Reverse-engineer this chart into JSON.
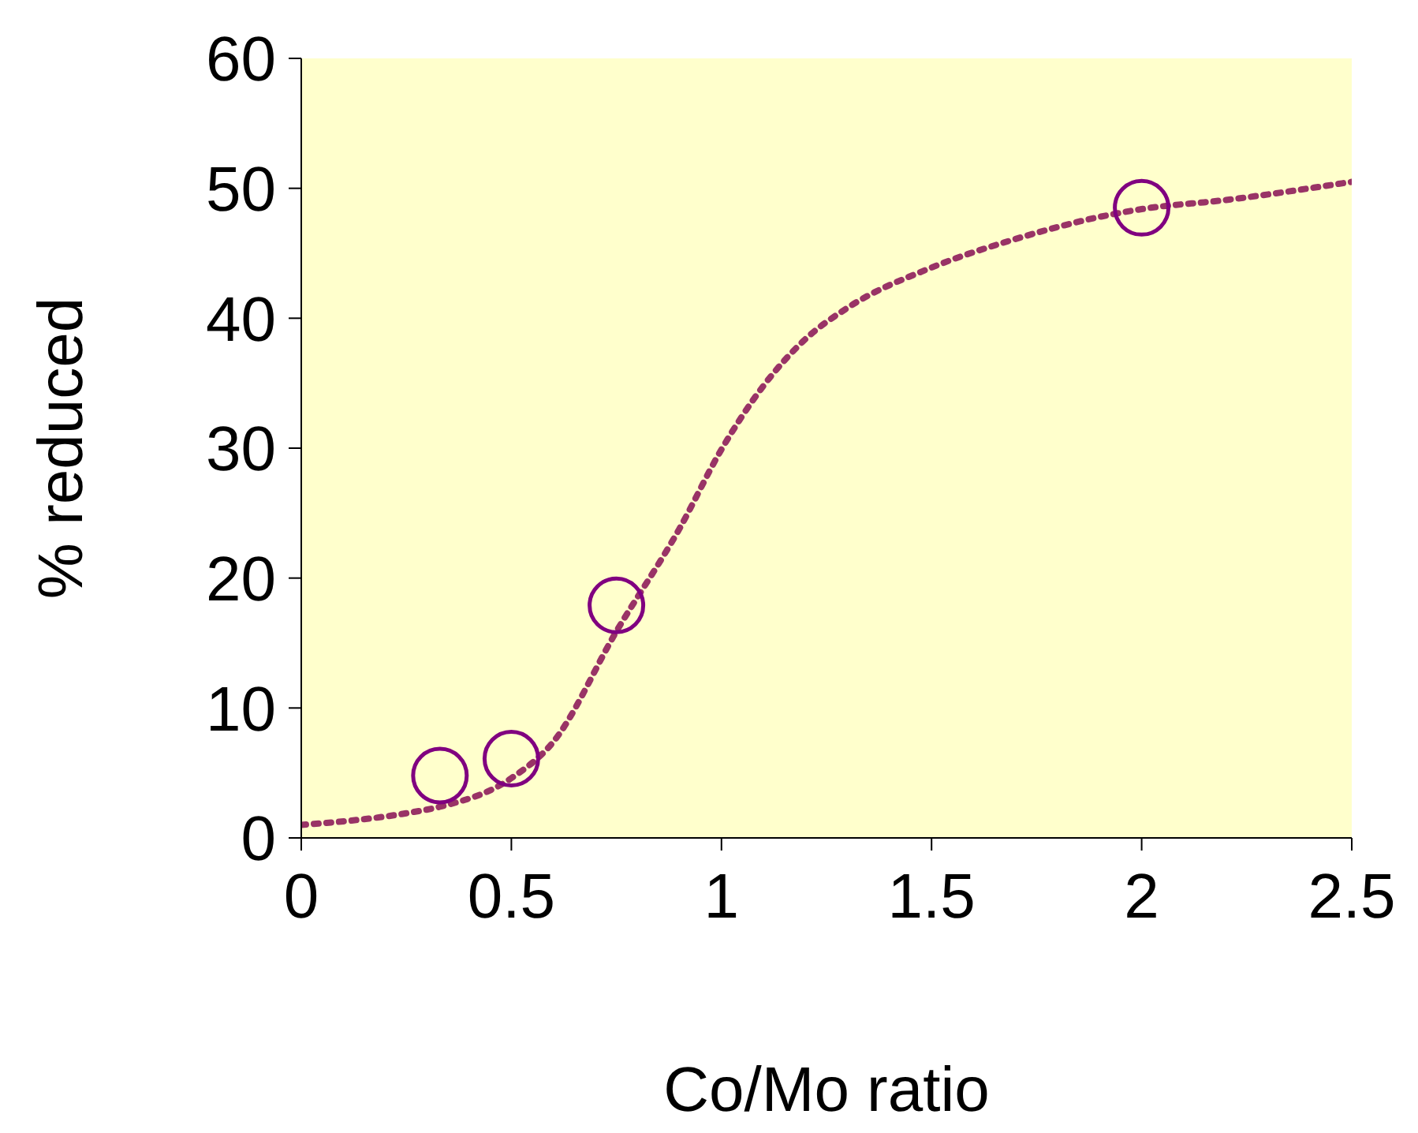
{
  "chart_data": {
    "type": "scatter",
    "xlabel": "Co/Mo ratio",
    "ylabel": "% reduced",
    "xlim": [
      0,
      2.5
    ],
    "xticks": [
      0,
      0.5,
      1,
      1.5,
      2,
      2.5
    ],
    "ylim": [
      0,
      60
    ],
    "yticks": [
      0,
      10,
      20,
      30,
      40,
      50,
      60
    ],
    "marker": "circle",
    "series": [
      {
        "color": "#800080",
        "x": [
          0.33,
          0.5,
          0.75,
          2.0
        ],
        "values": [
          4.8,
          6.1,
          17.9,
          48.5
        ]
      },
      {
        "type": "line",
        "color": "#993366",
        "line_style": "dotted",
        "marker": "none",
        "x": [
          0,
          0.25,
          0.33,
          0.5,
          0.6,
          0.75,
          0.9,
          1.0,
          1.1,
          1.2,
          1.3,
          1.5,
          1.7,
          1.9,
          2.0,
          2.2,
          2.5
        ],
        "values": [
          1.0,
          1.9,
          2.4,
          4.6,
          7.4,
          15.9,
          23.8,
          29.9,
          34.8,
          38.4,
          40.8,
          43.9,
          46.1,
          47.8,
          48.4,
          49.1,
          50.5
        ]
      }
    ]
  }
}
